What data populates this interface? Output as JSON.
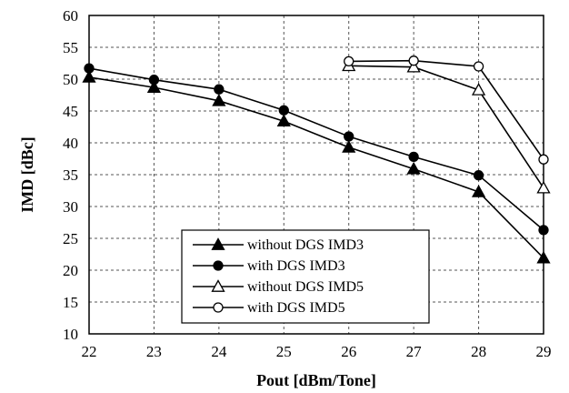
{
  "chart_data": {
    "type": "line",
    "xlabel": "Pout [dBm/Tone]",
    "ylabel": "IMD [dBc]",
    "xlim": [
      22,
      29
    ],
    "ylim": [
      10,
      60
    ],
    "x_ticks": [
      "22",
      "23",
      "24",
      "25",
      "26",
      "27",
      "28",
      "29"
    ],
    "y_ticks": [
      "10",
      "15",
      "20",
      "25",
      "30",
      "35",
      "40",
      "45",
      "50",
      "55",
      "60"
    ],
    "grid": true,
    "legend_position": "bottom-center",
    "series": [
      {
        "name": "without DGS IMD3",
        "marker": "filled-triangle",
        "color": "#000000",
        "x": [
          22,
          23,
          24,
          25,
          26,
          27,
          28,
          29
        ],
        "y": [
          50.3,
          48.7,
          46.6,
          43.4,
          39.3,
          35.9,
          32.3,
          21.9
        ]
      },
      {
        "name": "with DGS IMD3",
        "marker": "filled-circle",
        "color": "#000000",
        "x": [
          22,
          23,
          24,
          25,
          26,
          27,
          28,
          29
        ],
        "y": [
          51.7,
          49.9,
          48.4,
          45.1,
          41.0,
          37.8,
          34.9,
          26.3
        ]
      },
      {
        "name": "without DGS IMD5",
        "marker": "open-triangle",
        "color": "#000000",
        "x": [
          26,
          27,
          28,
          29
        ],
        "y": [
          52.1,
          51.9,
          48.3,
          32.9
        ]
      },
      {
        "name": "with DGS IMD5",
        "marker": "open-circle",
        "color": "#000000",
        "x": [
          26,
          27,
          28,
          29
        ],
        "y": [
          52.8,
          52.9,
          52.0,
          37.4
        ]
      }
    ]
  }
}
